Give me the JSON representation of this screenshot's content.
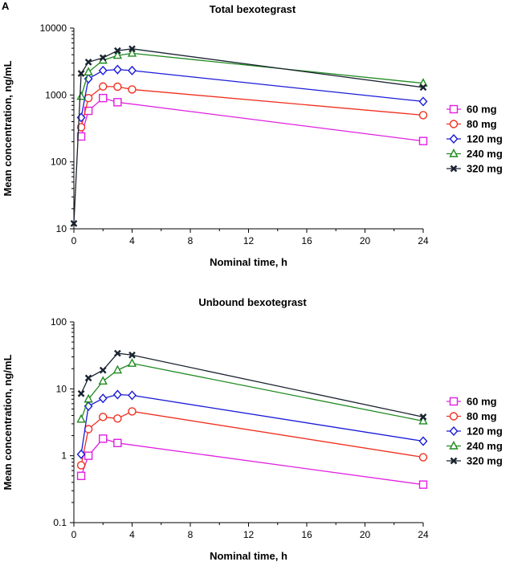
{
  "panel_label": "A",
  "chart_data": [
    {
      "type": "line",
      "yscale": "log",
      "title": "Total bexotegrast",
      "xlabel": "Nominal time, h",
      "ylabel": "Mean concentration, ng/mL",
      "xlim": [
        0,
        24
      ],
      "ylim": [
        10,
        10000
      ],
      "xticks": [
        "0",
        "4",
        "8",
        "12",
        "16",
        "20",
        "24"
      ],
      "yticks": [
        "10",
        "100",
        "1000",
        "10000"
      ],
      "legend_position": "right",
      "grid": false,
      "series": [
        {
          "name": "60 mg",
          "color": "#e020e0",
          "marker": "square",
          "x": [
            0.5,
            1,
            2,
            3,
            4,
            24
          ],
          "y": [
            240,
            580,
            900,
            780,
            null,
            205
          ]
        },
        {
          "name": "80 mg",
          "color": "#f03020",
          "marker": "circle",
          "x": [
            0.5,
            1,
            2,
            3,
            4,
            24
          ],
          "y": [
            330,
            900,
            1340,
            1330,
            1210,
            500
          ]
        },
        {
          "name": "120 mg",
          "color": "#1a1ad8",
          "marker": "diamond",
          "x": [
            0.5,
            1,
            2,
            3,
            4,
            24
          ],
          "y": [
            460,
            1750,
            2320,
            2400,
            2320,
            800
          ]
        },
        {
          "name": "240 mg",
          "color": "#1f8a1f",
          "marker": "triangle",
          "x": [
            0.5,
            1,
            2,
            3,
            4,
            24
          ],
          "y": [
            950,
            2200,
            3300,
            3900,
            4200,
            1500
          ]
        },
        {
          "name": "320 mg",
          "color": "#1a2330",
          "marker": "cross",
          "x": [
            0,
            0.5,
            1,
            2,
            3,
            4,
            24
          ],
          "y": [
            12,
            2100,
            3100,
            3600,
            4600,
            4900,
            1300
          ]
        }
      ]
    },
    {
      "type": "line",
      "yscale": "log",
      "title": "Unbound bexotegrast",
      "xlabel": "Nominal time, h",
      "ylabel": "Mean concentration, ng/mL",
      "xlim": [
        0,
        24
      ],
      "ylim": [
        0.1,
        100
      ],
      "xticks": [
        "0",
        "4",
        "8",
        "12",
        "16",
        "20",
        "24"
      ],
      "yticks": [
        "0.1",
        "1",
        "10",
        "100"
      ],
      "legend_position": "right",
      "grid": false,
      "series": [
        {
          "name": "60 mg",
          "color": "#e020e0",
          "marker": "square",
          "x": [
            0.5,
            1,
            2,
            3,
            24
          ],
          "y": [
            0.5,
            1.0,
            1.8,
            1.55,
            0.37
          ]
        },
        {
          "name": "80 mg",
          "color": "#f03020",
          "marker": "circle",
          "x": [
            0.5,
            1,
            2,
            3,
            4,
            24
          ],
          "y": [
            0.72,
            2.5,
            3.8,
            3.6,
            4.6,
            0.95
          ]
        },
        {
          "name": "120 mg",
          "color": "#1a1ad8",
          "marker": "diamond",
          "x": [
            0.5,
            1,
            2,
            3,
            4,
            24
          ],
          "y": [
            1.05,
            5.5,
            7.2,
            8.2,
            8.0,
            1.65
          ]
        },
        {
          "name": "240 mg",
          "color": "#1f8a1f",
          "marker": "triangle",
          "x": [
            0.5,
            1,
            2,
            3,
            4,
            24
          ],
          "y": [
            3.5,
            7.0,
            13,
            19,
            24,
            3.3
          ]
        },
        {
          "name": "320 mg",
          "color": "#1a2330",
          "marker": "cross",
          "x": [
            0.5,
            1,
            2,
            3,
            4,
            24
          ],
          "y": [
            8.5,
            14.5,
            19,
            34,
            32,
            3.8
          ]
        }
      ]
    }
  ]
}
